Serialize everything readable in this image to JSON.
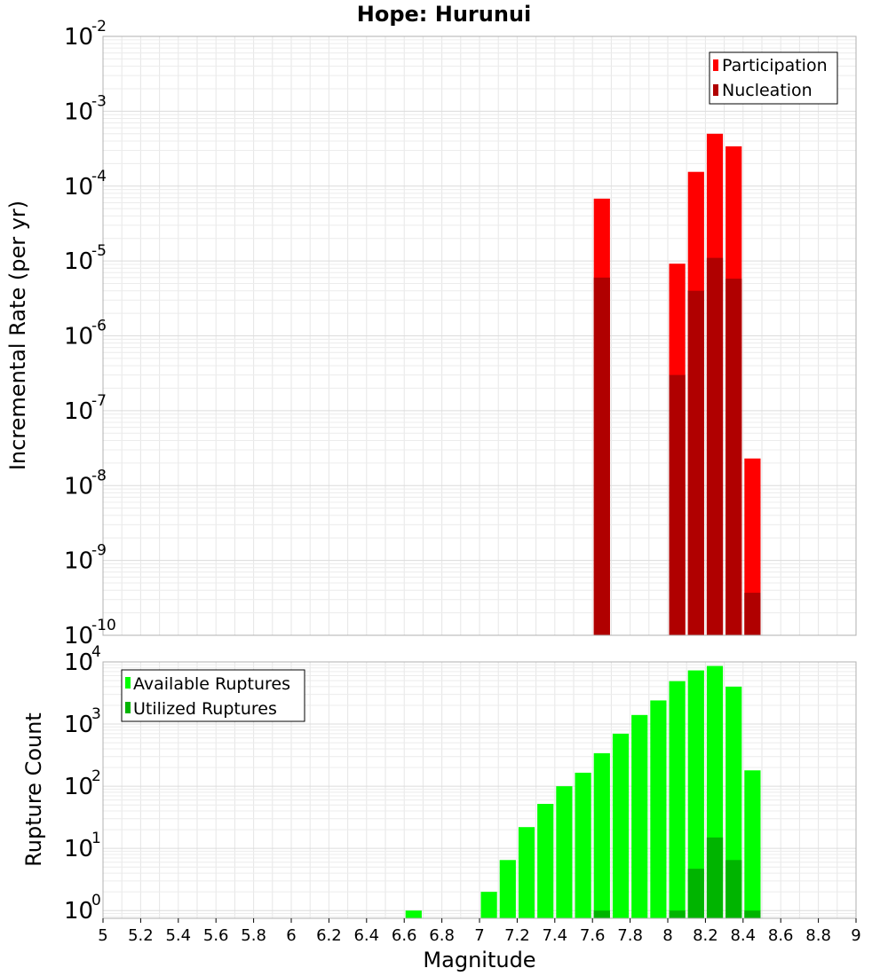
{
  "chart_data": [
    {
      "type": "bar",
      "title": "Hope: Hurunui",
      "xlabel": "",
      "ylabel": "Incremental Rate (per yr)",
      "xlim": [
        5,
        9
      ],
      "ylim": [
        1e-10,
        0.01
      ],
      "yscale": "log",
      "grid": true,
      "legend_position": "top-right",
      "bin_width": 0.1,
      "y_tick_exponents": [
        -10,
        -9,
        -8,
        -7,
        -6,
        -5,
        -4,
        -3,
        -2
      ],
      "series": [
        {
          "name": "Participation",
          "color": "#ff0000",
          "x": [
            7.65,
            8.05,
            8.15,
            8.25,
            8.35,
            8.45
          ],
          "values": [
            6.8e-05,
            9.2e-06,
            0.000155,
            0.0005,
            0.00034,
            2.3e-08
          ]
        },
        {
          "name": "Nucleation",
          "color": "#b00000",
          "x": [
            7.65,
            8.05,
            8.15,
            8.25,
            8.35,
            8.45
          ],
          "values": [
            6e-06,
            3e-07,
            4e-06,
            1.1e-05,
            5.8e-06,
            3.7e-10
          ]
        }
      ]
    },
    {
      "type": "bar",
      "title": "",
      "xlabel": "Magnitude",
      "ylabel": "Rupture Count",
      "xlim": [
        5,
        9
      ],
      "ylim": [
        0.75,
        10000
      ],
      "yscale": "log",
      "grid": true,
      "legend_position": "top-left",
      "bin_width": 0.1,
      "y_tick_exponents": [
        0,
        1,
        2,
        3,
        4
      ],
      "x_ticks": [
        "5",
        "5.2",
        "5.4",
        "5.6",
        "5.8",
        "6",
        "6.2",
        "6.4",
        "6.6",
        "6.8",
        "7",
        "7.2",
        "7.4",
        "7.6",
        "7.8",
        "8",
        "8.2",
        "8.4",
        "8.6",
        "8.8",
        "9"
      ],
      "series": [
        {
          "name": "Available Ruptures",
          "color": "#00ff00",
          "x": [
            6.65,
            7.05,
            7.15,
            7.25,
            7.35,
            7.45,
            7.55,
            7.65,
            7.75,
            7.85,
            7.95,
            8.05,
            8.15,
            8.25,
            8.35,
            8.45
          ],
          "values": [
            1,
            2,
            6.5,
            22,
            52,
            100,
            165,
            340,
            700,
            1400,
            2400,
            4900,
            7300,
            8600,
            4000,
            180
          ]
        },
        {
          "name": "Utilized Ruptures",
          "color": "#00b400",
          "x": [
            7.65,
            8.05,
            8.15,
            8.25,
            8.35,
            8.45
          ],
          "values": [
            1,
            1,
            4.7,
            15,
            6.5,
            1
          ]
        }
      ]
    }
  ]
}
